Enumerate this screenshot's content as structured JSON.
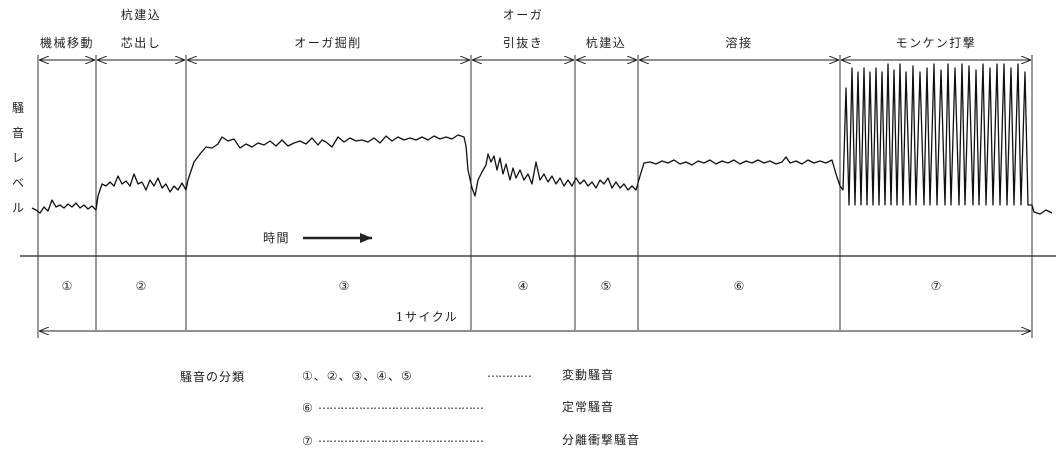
{
  "y_axis_label": [
    "騒",
    "音",
    "レ",
    "ベ",
    "ル"
  ],
  "phases": [
    {
      "num": "①",
      "label_top": "",
      "label": "機械移動"
    },
    {
      "num": "②",
      "label_top": "杭建込",
      "label": "芯出し"
    },
    {
      "num": "③",
      "label_top": "",
      "label": "オーガ掘削"
    },
    {
      "num": "④",
      "label_top": "オーガ",
      "label": "引抜き"
    },
    {
      "num": "⑤",
      "label_top": "",
      "label": "杭建込"
    },
    {
      "num": "⑥",
      "label_top": "",
      "label": "溶接"
    },
    {
      "num": "⑦",
      "label_top": "",
      "label": "モンケン打撃"
    }
  ],
  "time_label": "時間",
  "cycle_label": "1サイクル",
  "legend": {
    "title": "騒音の分類",
    "rows": [
      {
        "items": "①、②、③、④、⑤",
        "dots": "…………",
        "category": "変動騒音"
      },
      {
        "items": "⑥",
        "dots": "………………………………………",
        "category": "定常騒音"
      },
      {
        "items": "⑦",
        "dots": "………………………………………",
        "category": "分離衝撃騒音"
      }
    ]
  }
}
